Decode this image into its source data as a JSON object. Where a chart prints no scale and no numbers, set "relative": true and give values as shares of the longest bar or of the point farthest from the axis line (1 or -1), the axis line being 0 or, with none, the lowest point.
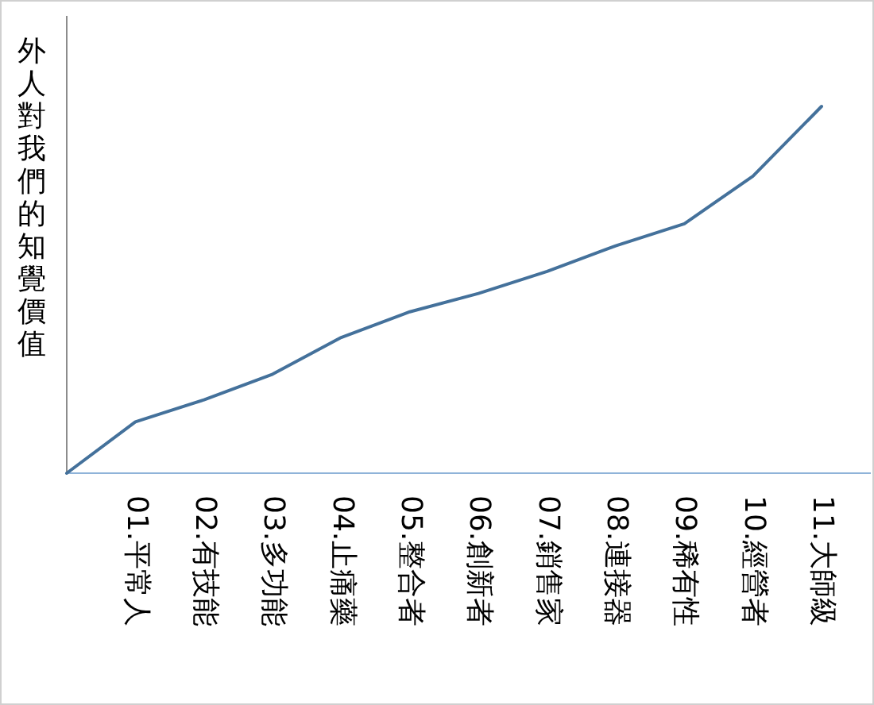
{
  "chart_data": {
    "type": "line",
    "ylabel": "外人對我們的知覺價值",
    "relative": true,
    "categories": [
      null,
      "01.平常人",
      "02.有技能",
      "03.多功能",
      "04.止痛藥",
      "05.整合者",
      "06.創新者",
      "07.銷售家",
      "08.連接器",
      "09.稀有性",
      "10.經營者",
      "11.大師級"
    ],
    "series": [
      {
        "color": "#44719b",
        "values": [
          0,
          0.14,
          0.2,
          0.27,
          0.37,
          0.44,
          0.49,
          0.55,
          0.62,
          0.68,
          0.81,
          1
        ]
      }
    ],
    "marker": "none",
    "line_style": "solid"
  }
}
